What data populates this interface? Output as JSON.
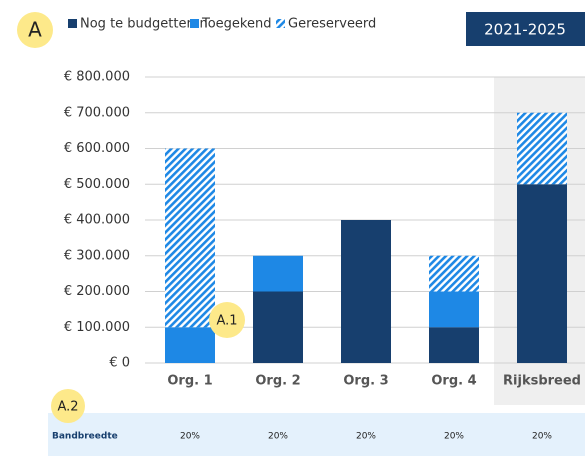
{
  "chart_data": {
    "type": "stacked_bar",
    "badges": [
      "A",
      "A.1",
      "A.2"
    ],
    "period": "2021-2025",
    "categories": [
      "Org. 1",
      "Org. 2",
      "Org. 3",
      "Org. 4",
      "Rijksbreed"
    ],
    "highlight": "Rijksbreed",
    "series": [
      {
        "name": "Nog te budgetteren",
        "color": "#173f6e",
        "values": [
          0,
          200000,
          400000,
          100000,
          500000
        ]
      },
      {
        "name": "Toegekend",
        "color": "#1e88e5",
        "values": [
          100000,
          100000,
          0,
          100000,
          0
        ]
      },
      {
        "name": "Gereserveerd",
        "color": "#1e88e5",
        "hatched": true,
        "values": [
          500000,
          0,
          0,
          100000,
          200000
        ]
      }
    ],
    "ylim": [
      0,
      800000
    ],
    "yticks": [
      {
        "value": 0,
        "label": "€ 0"
      },
      {
        "value": 100000,
        "label": "€ 100.000"
      },
      {
        "value": 200000,
        "label": "€ 200.000"
      },
      {
        "value": 300000,
        "label": "€ 300.000"
      },
      {
        "value": 400000,
        "label": "€ 400.000"
      },
      {
        "value": 500000,
        "label": "€ 500.000"
      },
      {
        "value": 600000,
        "label": "€ 600.000"
      },
      {
        "value": 700000,
        "label": "€ 700.000"
      },
      {
        "value": 800000,
        "label": "€ 800.000"
      }
    ],
    "grid": true,
    "bandwidth": {
      "label": "Bandbreedte",
      "values": [
        "20%",
        "20%",
        "20%",
        "20%",
        "20%"
      ]
    }
  }
}
